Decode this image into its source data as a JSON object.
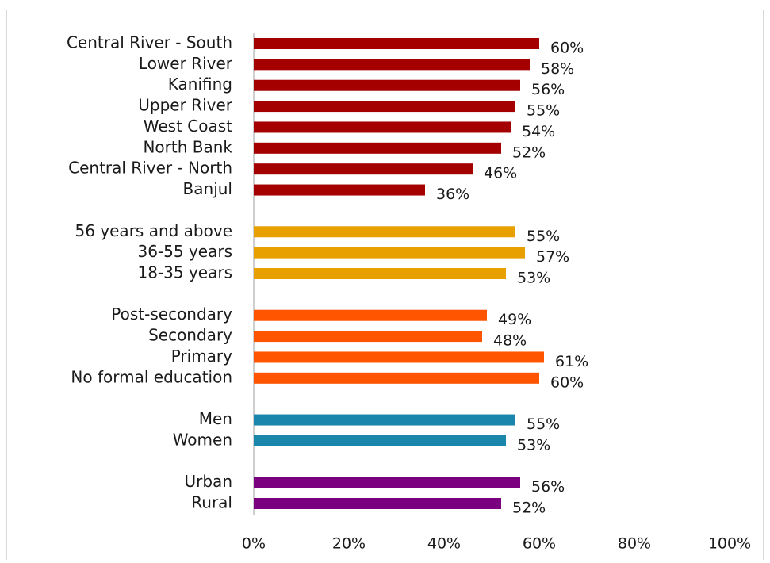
{
  "chart_data": {
    "type": "bar",
    "orientation": "horizontal",
    "categories": [
      "Central River - South",
      "Lower River",
      "Kanifing",
      "Upper River",
      "West Coast",
      "North Bank",
      "Central River - North",
      "Banjul",
      null,
      "56 years and above",
      "36-55 years",
      "18-35 years",
      null,
      "Post-secondary",
      "Secondary",
      "Primary",
      "No formal education",
      null,
      "Men",
      "Women",
      null,
      "Urban",
      "Rural"
    ],
    "values": [
      60,
      58,
      56,
      55,
      54,
      52,
      46,
      36,
      null,
      55,
      57,
      53,
      null,
      49,
      48,
      61,
      60,
      null,
      55,
      53,
      null,
      56,
      52
    ],
    "value_labels": [
      "60%",
      "58%",
      "56%",
      "55%",
      "54%",
      "52%",
      "46%",
      "36%",
      null,
      "55%",
      "57%",
      "53%",
      null,
      "49%",
      "48%",
      "61%",
      "60%",
      null,
      "55%",
      "53%",
      null,
      "56%",
      "52%"
    ],
    "colors": [
      "#a50000",
      "#a50000",
      "#a50000",
      "#a50000",
      "#a50000",
      "#a50000",
      "#a50000",
      "#a50000",
      null,
      "#e8a000",
      "#e8a000",
      "#e8a000",
      null,
      "#ff5500",
      "#ff5500",
      "#ff5500",
      "#ff5500",
      null,
      "#1a86ab",
      "#1a86ab",
      null,
      "#7b0080",
      "#7b0080"
    ],
    "xlim": [
      0,
      100
    ],
    "xticks": [
      {
        "value": 0,
        "label": "0%"
      },
      {
        "value": 20,
        "label": "20%"
      },
      {
        "value": 40,
        "label": "40%"
      },
      {
        "value": 60,
        "label": "60%"
      },
      {
        "value": 80,
        "label": "80%"
      },
      {
        "value": 100,
        "label": "100%"
      }
    ],
    "grid": false
  }
}
